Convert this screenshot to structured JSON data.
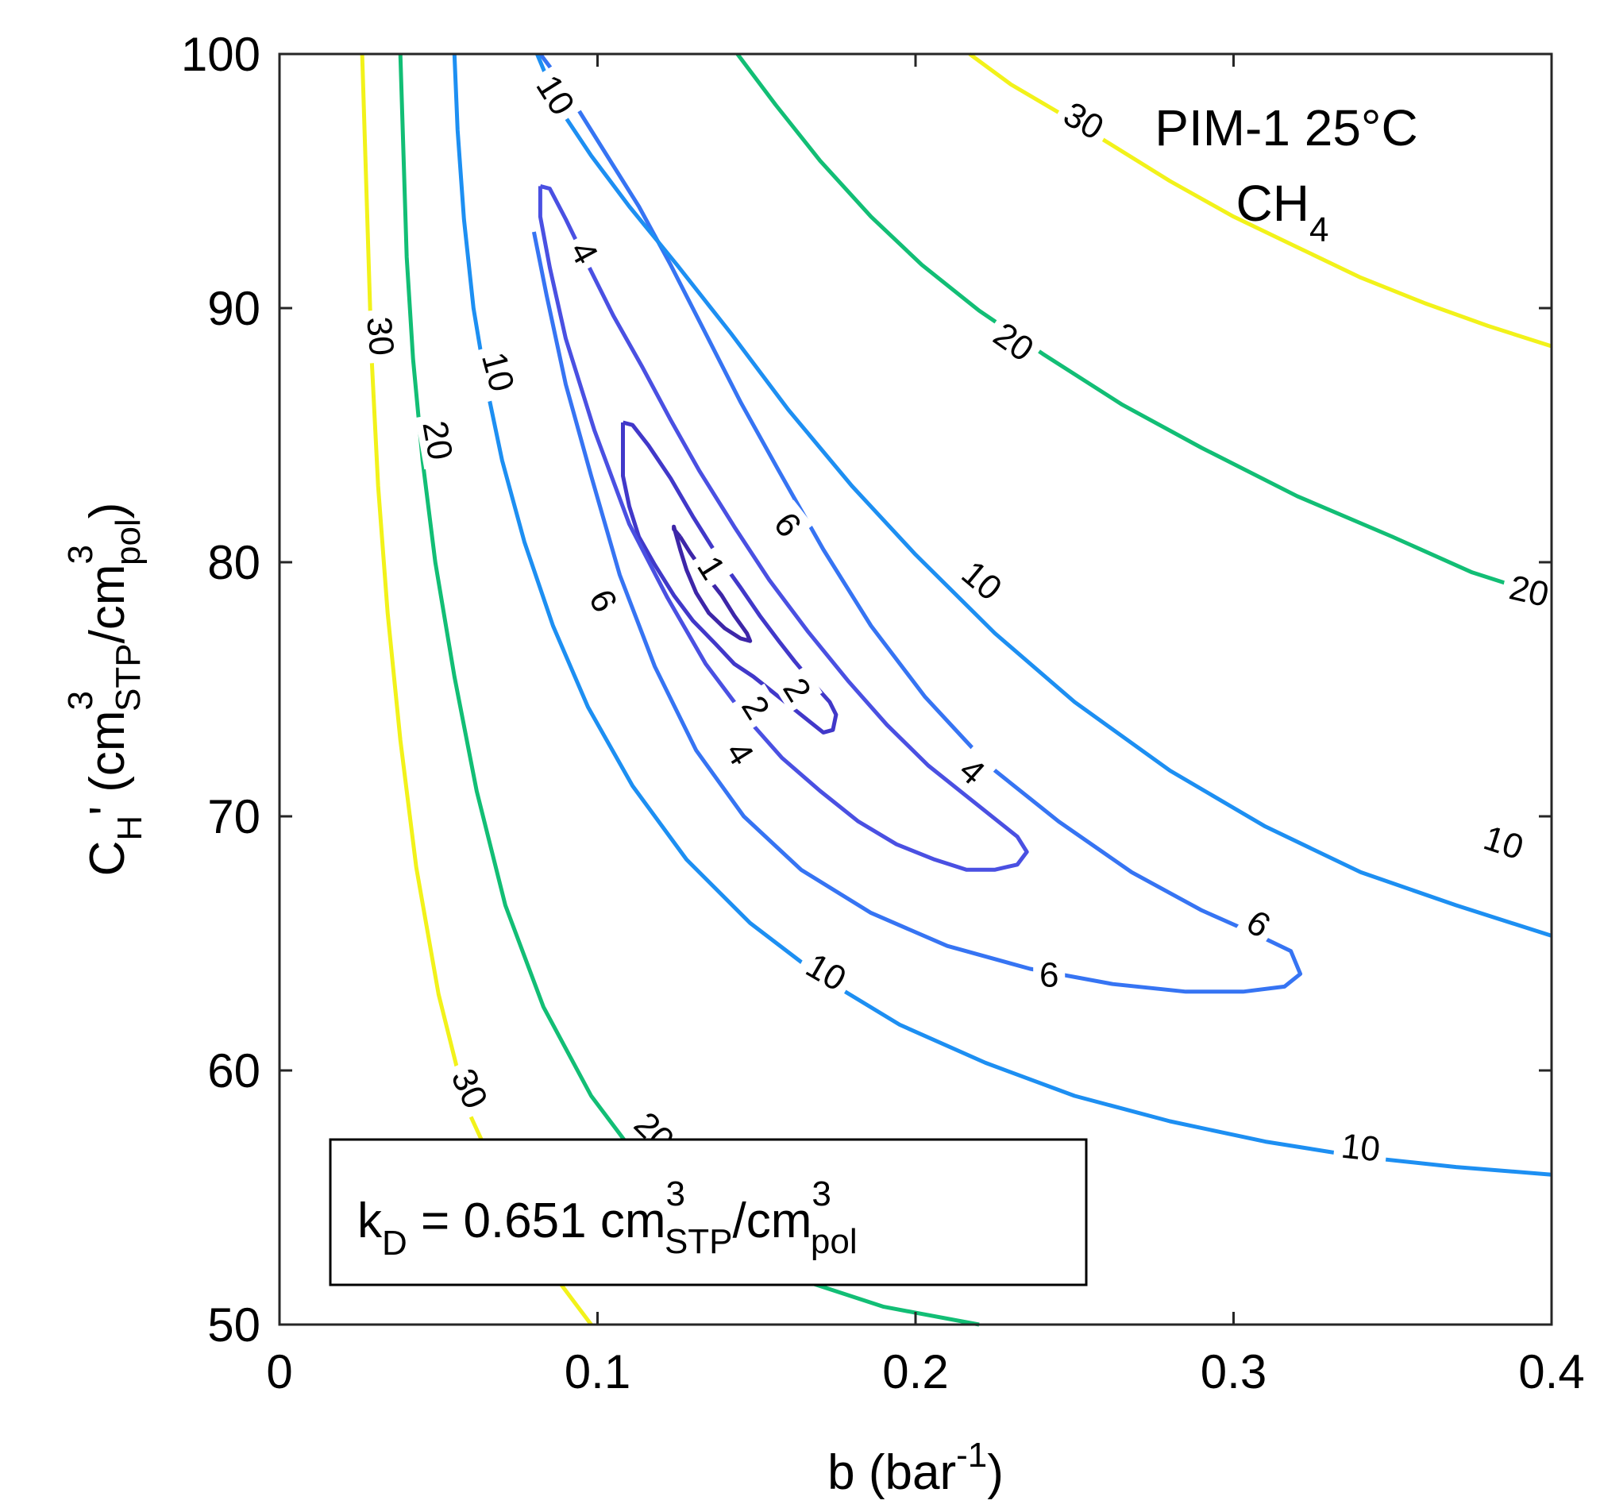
{
  "chart_data": {
    "type": "contour",
    "title": "",
    "xlabel": {
      "main": "b (bar",
      "sup": "-1",
      "end": ")"
    },
    "ylabel": {
      "c": "C",
      "c_sub": "H",
      "prime": "' (cm",
      "sup1": "3",
      "sub1": "STP",
      "mid": "/cm",
      "sup2": "3",
      "sub2": "pol",
      "end": ")"
    },
    "xlim": [
      0,
      0.4
    ],
    "ylim": [
      50,
      100
    ],
    "xticks": [
      0,
      0.1,
      0.2,
      0.3,
      0.4
    ],
    "xtick_labels": [
      "0",
      "0.1",
      "0.2",
      "0.3",
      "0.4"
    ],
    "yticks": [
      50,
      60,
      70,
      80,
      90,
      100
    ],
    "ytick_labels": [
      "50",
      "60",
      "70",
      "80",
      "90",
      "100"
    ],
    "annotation": {
      "line1": "PIM-1 25°C",
      "line2": "CH",
      "line2_sub": "4"
    },
    "textbox": {
      "k": "k",
      "k_sub": "D",
      "eq": " = 0.651 cm",
      "sup1": "3",
      "sub1": "STP",
      "mid": "/cm",
      "sup2": "3",
      "sub2": "pol"
    },
    "levels": [
      {
        "level": 1,
        "color": "#3d26a8",
        "closed": true,
        "points": [
          [
            0.126,
            81.0
          ],
          [
            0.129,
            80.4
          ],
          [
            0.134,
            79.5
          ],
          [
            0.139,
            78.7
          ],
          [
            0.143,
            77.9
          ],
          [
            0.147,
            77.2
          ],
          [
            0.148,
            76.9
          ],
          [
            0.145,
            77.0
          ],
          [
            0.14,
            77.4
          ],
          [
            0.135,
            78.0
          ],
          [
            0.131,
            78.8
          ],
          [
            0.128,
            79.7
          ],
          [
            0.126,
            80.5
          ],
          [
            0.124,
            81.4
          ],
          [
            0.124,
            81.3
          ],
          [
            0.126,
            81.0
          ]
        ],
        "labels": [
          {
            "text": "1",
            "x": 0.136,
            "y": 79.8,
            "angle": -58
          }
        ]
      },
      {
        "level": 2,
        "color": "#4138c9",
        "closed": true,
        "points": [
          [
            0.108,
            85.5
          ],
          [
            0.111,
            85.4
          ],
          [
            0.116,
            84.6
          ],
          [
            0.123,
            83.3
          ],
          [
            0.13,
            81.8
          ],
          [
            0.137,
            80.4
          ],
          [
            0.145,
            79.0
          ],
          [
            0.151,
            77.9
          ],
          [
            0.157,
            76.9
          ],
          [
            0.162,
            76.1
          ],
          [
            0.168,
            75.2
          ],
          [
            0.173,
            74.5
          ],
          [
            0.175,
            74.0
          ],
          [
            0.174,
            73.4
          ],
          [
            0.171,
            73.3
          ],
          [
            0.166,
            73.8
          ],
          [
            0.16,
            74.4
          ],
          [
            0.154,
            75.0
          ],
          [
            0.149,
            75.5
          ],
          [
            0.143,
            76.0
          ],
          [
            0.137,
            76.8
          ],
          [
            0.13,
            77.7
          ],
          [
            0.124,
            78.7
          ],
          [
            0.118,
            79.9
          ],
          [
            0.113,
            81.0
          ],
          [
            0.11,
            82.2
          ],
          [
            0.108,
            83.4
          ],
          [
            0.108,
            84.5
          ],
          [
            0.108,
            85.5
          ]
        ],
        "labels": [
          {
            "text": "2",
            "x": 0.163,
            "y": 75.0,
            "angle": -58
          },
          {
            "text": "2",
            "x": 0.15,
            "y": 74.3,
            "angle": -58
          }
        ]
      },
      {
        "level": 4,
        "color": "#4a50e2",
        "closed": true,
        "points": [
          [
            0.082,
            94.8
          ],
          [
            0.085,
            94.7
          ],
          [
            0.09,
            93.5
          ],
          [
            0.097,
            91.7
          ],
          [
            0.105,
            89.7
          ],
          [
            0.114,
            87.7
          ],
          [
            0.123,
            85.6
          ],
          [
            0.132,
            83.6
          ],
          [
            0.143,
            81.4
          ],
          [
            0.154,
            79.3
          ],
          [
            0.166,
            77.3
          ],
          [
            0.179,
            75.3
          ],
          [
            0.191,
            73.6
          ],
          [
            0.204,
            72.0
          ],
          [
            0.216,
            70.8
          ],
          [
            0.225,
            69.9
          ],
          [
            0.232,
            69.2
          ],
          [
            0.235,
            68.6
          ],
          [
            0.232,
            68.1
          ],
          [
            0.225,
            67.9
          ],
          [
            0.216,
            67.9
          ],
          [
            0.206,
            68.3
          ],
          [
            0.194,
            68.9
          ],
          [
            0.182,
            69.8
          ],
          [
            0.17,
            71.0
          ],
          [
            0.158,
            72.3
          ],
          [
            0.146,
            74.0
          ],
          [
            0.134,
            76.0
          ],
          [
            0.122,
            78.6
          ],
          [
            0.11,
            81.5
          ],
          [
            0.099,
            85.2
          ],
          [
            0.09,
            88.8
          ],
          [
            0.085,
            91.6
          ],
          [
            0.082,
            93.6
          ],
          [
            0.082,
            94.8
          ]
        ],
        "labels": [
          {
            "text": "4",
            "x": 0.096,
            "y": 92.2,
            "angle": -62
          },
          {
            "text": "4",
            "x": 0.145,
            "y": 72.5,
            "angle": -58
          },
          {
            "text": "4",
            "x": 0.218,
            "y": 71.8,
            "angle": -42
          }
        ]
      },
      {
        "level": 6,
        "color": "#3674f3",
        "closed": false,
        "points": [
          [
            0.082,
            100.0
          ],
          [
            0.085,
            99.5
          ],
          [
            0.093,
            98.0
          ],
          [
            0.103,
            96.0
          ],
          [
            0.113,
            94.0
          ],
          [
            0.123,
            91.7
          ],
          [
            0.134,
            89.0
          ],
          [
            0.145,
            86.3
          ],
          [
            0.157,
            83.6
          ],
          [
            0.171,
            80.5
          ],
          [
            0.186,
            77.5
          ],
          [
            0.203,
            74.7
          ],
          [
            0.223,
            72.0
          ],
          [
            0.245,
            69.8
          ],
          [
            0.268,
            67.8
          ],
          [
            0.29,
            66.3
          ],
          [
            0.308,
            65.3
          ],
          [
            0.318,
            64.7
          ],
          [
            0.321,
            63.8
          ],
          [
            0.316,
            63.3
          ],
          [
            0.303,
            63.1
          ],
          [
            0.285,
            63.1
          ],
          [
            0.262,
            63.4
          ],
          [
            0.236,
            64.0
          ],
          [
            0.21,
            64.9
          ],
          [
            0.186,
            66.2
          ],
          [
            0.164,
            67.9
          ],
          [
            0.146,
            70.0
          ],
          [
            0.131,
            72.6
          ],
          [
            0.118,
            75.9
          ],
          [
            0.107,
            79.5
          ],
          [
            0.098,
            83.4
          ],
          [
            0.09,
            87.0
          ],
          [
            0.084,
            90.5
          ],
          [
            0.08,
            93.0
          ]
        ],
        "labels": [
          {
            "text": "6",
            "x": 0.16,
            "y": 81.5,
            "angle": -52
          },
          {
            "text": "6",
            "x": 0.102,
            "y": 78.5,
            "angle": -63
          },
          {
            "text": "6",
            "x": 0.308,
            "y": 65.8,
            "angle": -34
          },
          {
            "text": "6",
            "x": 0.242,
            "y": 63.8,
            "angle": 0
          }
        ]
      },
      {
        "level": 10,
        "color": "#1d8ff2",
        "closed": false,
        "segments": [
          {
            "points": [
              [
                0.081,
                100.0
              ],
              [
                0.085,
                98.8
              ],
              [
                0.09,
                97.5
              ],
              [
                0.098,
                96.0
              ],
              [
                0.11,
                94.0
              ],
              [
                0.125,
                91.7
              ],
              [
                0.142,
                89.0
              ],
              [
                0.16,
                86.0
              ],
              [
                0.18,
                83.0
              ],
              [
                0.2,
                80.3
              ],
              [
                0.225,
                77.2
              ],
              [
                0.25,
                74.5
              ],
              [
                0.28,
                71.8
              ],
              [
                0.31,
                69.6
              ],
              [
                0.34,
                67.8
              ],
              [
                0.37,
                66.5
              ],
              [
                0.4,
                65.3
              ]
            ],
            "labels": [
              {
                "text": "10",
                "x": 0.087,
                "y": 98.4,
                "angle": -58
              },
              {
                "text": "10",
                "x": 0.221,
                "y": 79.3,
                "angle": -40
              },
              {
                "text": "10",
                "x": 0.385,
                "y": 69.0,
                "angle": -18
              }
            ]
          },
          {
            "points": [
              [
                0.055,
                100.0
              ],
              [
                0.056,
                97.0
              ],
              [
                0.058,
                93.5
              ],
              [
                0.061,
                90.0
              ],
              [
                0.065,
                87.0
              ],
              [
                0.07,
                84.0
              ],
              [
                0.077,
                80.8
              ],
              [
                0.086,
                77.5
              ],
              [
                0.097,
                74.3
              ],
              [
                0.111,
                71.2
              ],
              [
                0.128,
                68.3
              ],
              [
                0.148,
                65.8
              ],
              [
                0.17,
                63.7
              ],
              [
                0.195,
                61.8
              ],
              [
                0.222,
                60.3
              ],
              [
                0.25,
                59.0
              ],
              [
                0.28,
                58.0
              ],
              [
                0.31,
                57.2
              ],
              [
                0.34,
                56.6
              ],
              [
                0.37,
                56.2
              ],
              [
                0.4,
                55.9
              ]
            ],
            "labels": [
              {
                "text": "10",
                "x": 0.069,
                "y": 87.5,
                "angle": -75
              },
              {
                "text": "10",
                "x": 0.172,
                "y": 63.9,
                "angle": -30
              },
              {
                "text": "10",
                "x": 0.34,
                "y": 57.0,
                "angle": -6
              }
            ]
          }
        ]
      },
      {
        "level": 20,
        "color": "#12be75",
        "closed": false,
        "segments": [
          {
            "points": [
              [
                0.144,
                100.0
              ],
              [
                0.156,
                98.0
              ],
              [
                0.17,
                95.8
              ],
              [
                0.186,
                93.6
              ],
              [
                0.202,
                91.7
              ],
              [
                0.22,
                89.9
              ],
              [
                0.24,
                88.2
              ],
              [
                0.265,
                86.2
              ],
              [
                0.29,
                84.5
              ],
              [
                0.32,
                82.6
              ],
              [
                0.35,
                81.0
              ],
              [
                0.375,
                79.6
              ],
              [
                0.4,
                78.6
              ]
            ],
            "labels": [
              {
                "text": "20",
                "x": 0.231,
                "y": 88.7,
                "angle": -35
              },
              {
                "text": "20",
                "x": 0.393,
                "y": 78.9,
                "angle": -13
              }
            ]
          },
          {
            "points": [
              [
                0.038,
                100.0
              ],
              [
                0.039,
                96.0
              ],
              [
                0.04,
                92.0
              ],
              [
                0.042,
                88.0
              ],
              [
                0.045,
                84.0
              ],
              [
                0.049,
                80.0
              ],
              [
                0.055,
                75.5
              ],
              [
                0.062,
                71.0
              ],
              [
                0.071,
                66.5
              ],
              [
                0.083,
                62.5
              ],
              [
                0.098,
                59.0
              ],
              [
                0.116,
                56.0
              ],
              [
                0.138,
                53.6
              ],
              [
                0.163,
                51.8
              ],
              [
                0.19,
                50.7
              ],
              [
                0.22,
                50.0
              ]
            ],
            "labels": [
              {
                "text": "20",
                "x": 0.05,
                "y": 84.8,
                "angle": -80
              },
              {
                "text": "20",
                "x": 0.118,
                "y": 57.6,
                "angle": -45
              }
            ]
          }
        ]
      },
      {
        "level": 30,
        "color": "#f2f21a",
        "closed": false,
        "segments": [
          {
            "points": [
              [
                0.217,
                100.0
              ],
              [
                0.23,
                98.8
              ],
              [
                0.245,
                97.7
              ],
              [
                0.262,
                96.4
              ],
              [
                0.28,
                95.0
              ],
              [
                0.3,
                93.6
              ],
              [
                0.32,
                92.4
              ],
              [
                0.34,
                91.2
              ],
              [
                0.36,
                90.2
              ],
              [
                0.38,
                89.3
              ],
              [
                0.4,
                88.5
              ]
            ],
            "labels": [
              {
                "text": "30",
                "x": 0.253,
                "y": 97.4,
                "angle": -30
              }
            ]
          },
          {
            "points": [
              [
                0.026,
                100.0
              ],
              [
                0.027,
                96.0
              ],
              [
                0.028,
                92.0
              ],
              [
                0.029,
                88.0
              ],
              [
                0.031,
                83.0
              ],
              [
                0.034,
                78.0
              ],
              [
                0.038,
                73.0
              ],
              [
                0.043,
                68.0
              ],
              [
                0.05,
                63.0
              ],
              [
                0.059,
                58.5
              ],
              [
                0.07,
                55.5
              ],
              [
                0.083,
                52.5
              ],
              [
                0.098,
                50.0
              ]
            ],
            "labels": [
              {
                "text": "30",
                "x": 0.032,
                "y": 88.9,
                "angle": -85
              },
              {
                "text": "30",
                "x": 0.06,
                "y": 59.3,
                "angle": -65
              }
            ]
          }
        ]
      }
    ]
  }
}
